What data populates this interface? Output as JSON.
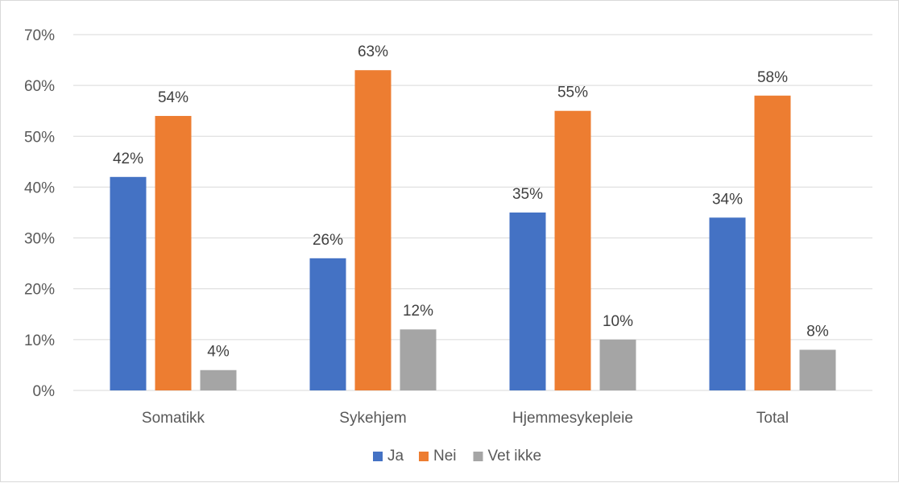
{
  "chart_data": {
    "type": "bar",
    "categories": [
      "Somatikk",
      "Sykehjem",
      "Hjemmesykepleie",
      "Total"
    ],
    "series": [
      {
        "name": "Ja",
        "color": "#4472c4",
        "values": [
          42,
          26,
          35,
          34
        ],
        "labels": [
          "42%",
          "26%",
          "35%",
          "34%"
        ]
      },
      {
        "name": "Nei",
        "color": "#ed7d31",
        "values": [
          54,
          63,
          55,
          58
        ],
        "labels": [
          "54%",
          "63%",
          "55%",
          "58%"
        ]
      },
      {
        "name": "Vet ikke",
        "color": "#a5a5a5",
        "values": [
          4,
          12,
          10,
          8
        ],
        "labels": [
          "4%",
          "12%",
          "10%",
          "8%"
        ]
      }
    ],
    "ylim": [
      0,
      70
    ],
    "yticks": [
      "0%",
      "10%",
      "20%",
      "30%",
      "40%",
      "50%",
      "60%",
      "70%"
    ],
    "grid": true,
    "legend": "bottom",
    "title": "",
    "xlabel": "",
    "ylabel": ""
  }
}
